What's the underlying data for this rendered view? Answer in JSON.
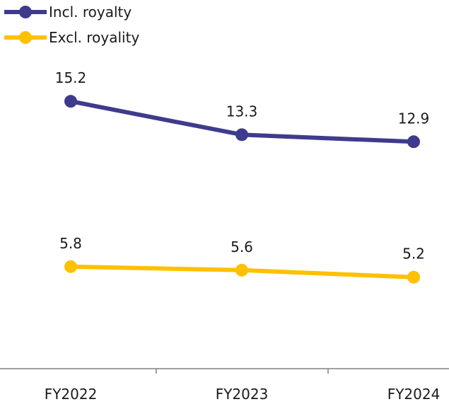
{
  "colors": {
    "series_1": "#3f3b8c",
    "series_2": "#ffc000",
    "axis": "#808080",
    "text": "#1a1a1a",
    "background": "#ffffff"
  },
  "chart_data": {
    "type": "line",
    "title": "",
    "xlabel": "",
    "ylabel": "",
    "categories": [
      "FY2022",
      "FY2023",
      "FY2024"
    ],
    "ylim": [
      0,
      17
    ],
    "grid": false,
    "legend_position": "top-left",
    "y_axis_visible": false,
    "data_labels": true,
    "series": [
      {
        "name": "Incl. royalty",
        "values": [
          15.2,
          13.3,
          12.9
        ],
        "color": "#3f3b8c",
        "labels": [
          "15.2",
          "13.3",
          "12.9"
        ]
      },
      {
        "name": "Excl. royality",
        "values": [
          5.8,
          5.6,
          5.2
        ],
        "color": "#ffc000",
        "labels": [
          "5.8",
          "5.6",
          "5.2"
        ]
      }
    ]
  }
}
